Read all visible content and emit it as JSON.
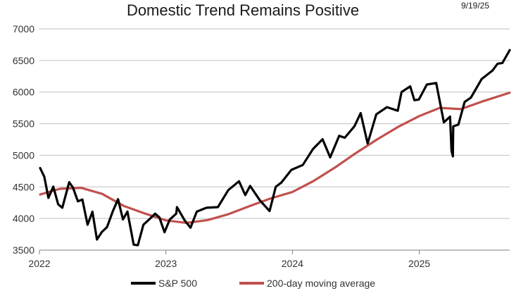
{
  "chart_data": {
    "type": "line",
    "title": "Domestic Trend Remains Positive",
    "date_label": "9/19/25",
    "xlabel": "",
    "ylabel": "",
    "x_range": [
      "2022-01-01",
      "2025-09-19"
    ],
    "x_ticks": [
      {
        "label": "2022",
        "date": "2022-01-01"
      },
      {
        "label": "2023",
        "date": "2023-01-01"
      },
      {
        "label": "2024",
        "date": "2024-01-01"
      },
      {
        "label": "2025",
        "date": "2025-01-01"
      }
    ],
    "ylim": [
      3500,
      7000
    ],
    "y_ticks": [
      3500,
      4000,
      4500,
      5000,
      5500,
      6000,
      6500,
      7000
    ],
    "y_tick_labels": [
      "3500",
      "4000",
      "4500",
      "5000",
      "5500",
      "6000",
      "6500",
      "7000"
    ],
    "grid": "horizontal",
    "legend_position": "bottom",
    "colors": {
      "sp500": "#000000",
      "ma200": "#c0504d",
      "grid": "#bfbfbf",
      "axis": "#808080"
    },
    "series": [
      {
        "name": "S&P 500",
        "x": [
          "2022-01-03",
          "2022-01-15",
          "2022-01-27",
          "2022-02-10",
          "2022-02-24",
          "2022-03-08",
          "2022-03-28",
          "2022-04-08",
          "2022-04-22",
          "2022-05-05",
          "2022-05-20",
          "2022-06-03",
          "2022-06-16",
          "2022-06-30",
          "2022-07-15",
          "2022-08-01",
          "2022-08-16",
          "2022-08-30",
          "2022-09-12",
          "2022-09-30",
          "2022-10-12",
          "2022-10-28",
          "2022-11-15",
          "2022-12-01",
          "2022-12-13",
          "2022-12-28",
          "2023-01-12",
          "2023-01-31",
          "2023-02-02",
          "2023-02-24",
          "2023-03-13",
          "2023-03-31",
          "2023-04-28",
          "2023-05-31",
          "2023-06-30",
          "2023-07-31",
          "2023-08-18",
          "2023-09-01",
          "2023-09-29",
          "2023-10-27",
          "2023-11-14",
          "2023-11-30",
          "2023-12-29",
          "2024-01-31",
          "2024-02-29",
          "2024-03-28",
          "2024-04-19",
          "2024-05-15",
          "2024-05-31",
          "2024-06-28",
          "2024-07-16",
          "2024-08-05",
          "2024-08-30",
          "2024-09-30",
          "2024-10-31",
          "2024-11-11",
          "2024-12-06",
          "2024-12-18",
          "2024-12-31",
          "2025-01-23",
          "2025-02-19",
          "2025-03-13",
          "2025-03-31",
          "2025-04-04",
          "2025-04-08",
          "2025-04-09",
          "2025-04-24",
          "2025-05-12",
          "2025-05-30",
          "2025-06-30",
          "2025-07-31",
          "2025-08-15",
          "2025-08-29",
          "2025-09-19"
        ],
        "values": [
          4797,
          4662,
          4326,
          4504,
          4225,
          4170,
          4575,
          4488,
          4272,
          4300,
          3901,
          4108,
          3667,
          3785,
          3863,
          4119,
          4305,
          3986,
          4110,
          3586,
          3577,
          3901,
          3992,
          4076,
          4019,
          3783,
          3983,
          4077,
          4180,
          3970,
          3855,
          4109,
          4170,
          4180,
          4450,
          4589,
          4370,
          4515,
          4288,
          4117,
          4502,
          4568,
          4770,
          4846,
          5096,
          5254,
          4967,
          5308,
          5278,
          5460,
          5667,
          5186,
          5648,
          5762,
          5705,
          6001,
          6090,
          5872,
          5882,
          6119,
          6144,
          5521,
          5612,
          5074,
          4983,
          5457,
          5485,
          5844,
          5912,
          6205,
          6339,
          6449,
          6460,
          6664
        ]
      },
      {
        "name": "200-day moving average",
        "x": [
          "2022-01-03",
          "2022-03-01",
          "2022-05-01",
          "2022-07-01",
          "2022-09-01",
          "2022-11-01",
          "2023-01-01",
          "2023-03-01",
          "2023-05-01",
          "2023-07-01",
          "2023-09-01",
          "2023-11-01",
          "2024-01-01",
          "2024-03-01",
          "2024-05-01",
          "2024-07-01",
          "2024-09-01",
          "2024-11-01",
          "2025-01-01",
          "2025-03-01",
          "2025-05-01",
          "2025-07-01",
          "2025-09-19"
        ],
        "values": [
          4380,
          4470,
          4485,
          4390,
          4200,
          4080,
          3970,
          3930,
          3975,
          4070,
          4200,
          4320,
          4420,
          4590,
          4800,
          5030,
          5250,
          5450,
          5620,
          5750,
          5730,
          5850,
          5990
        ]
      }
    ]
  }
}
